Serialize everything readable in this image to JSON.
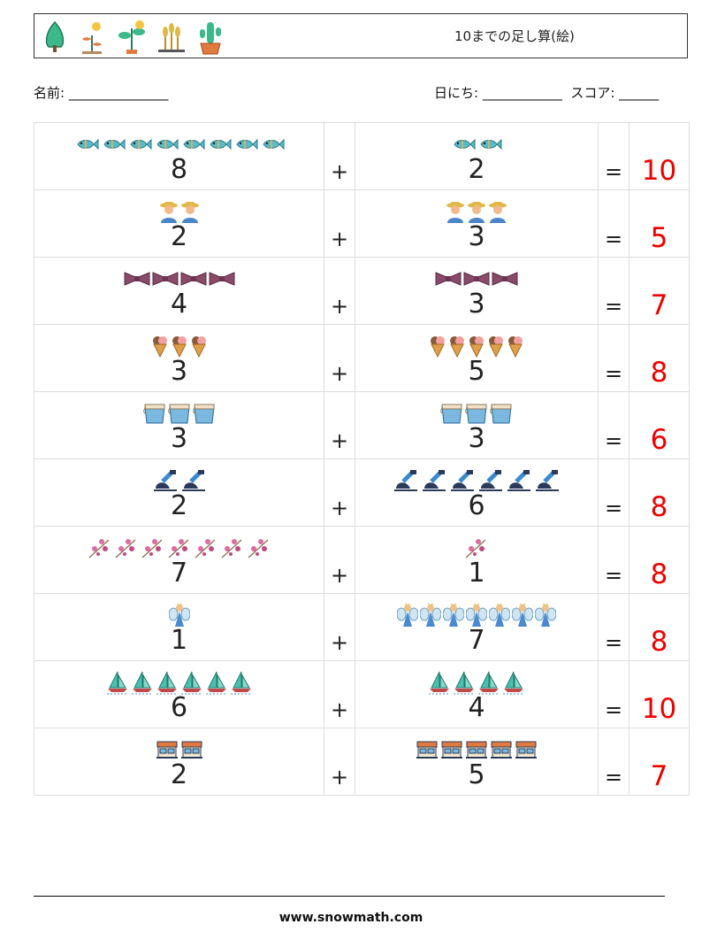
{
  "header": {
    "title": "10までの足し算(絵)",
    "icons": [
      "tree-icon",
      "sprout-icon",
      "plant-icon",
      "wheat-icon",
      "cactus-icon"
    ]
  },
  "meta": {
    "name_label": "名前: _______________",
    "date_score_label": "日にち: ____________  スコア: ______"
  },
  "problems": [
    {
      "a": "8",
      "a_icon": "fish-icon",
      "op": "+",
      "b": "2",
      "b_icon": "fish-icon",
      "eq": "=",
      "answer": "10"
    },
    {
      "a": "2",
      "a_icon": "farmer-icon",
      "op": "+",
      "b": "3",
      "b_icon": "farmer-icon",
      "eq": "=",
      "answer": "5"
    },
    {
      "a": "4",
      "a_icon": "bow-tie-icon",
      "op": "+",
      "b": "3",
      "b_icon": "bow-tie-icon",
      "eq": "=",
      "answer": "7"
    },
    {
      "a": "3",
      "a_icon": "ice-cream-icon",
      "op": "+",
      "b": "5",
      "b_icon": "ice-cream-icon",
      "eq": "=",
      "answer": "8"
    },
    {
      "a": "3",
      "a_icon": "water-bucket-icon",
      "op": "+",
      "b": "3",
      "b_icon": "water-bucket-icon",
      "eq": "=",
      "answer": "6"
    },
    {
      "a": "2",
      "a_icon": "microscope-icon",
      "op": "+",
      "b": "6",
      "b_icon": "microscope-icon",
      "eq": "=",
      "answer": "8"
    },
    {
      "a": "7",
      "a_icon": "flower-branch-icon",
      "op": "+",
      "b": "1",
      "b_icon": "flower-branch-icon",
      "eq": "=",
      "answer": "8"
    },
    {
      "a": "1",
      "a_icon": "fairy-icon",
      "op": "+",
      "b": "7",
      "b_icon": "fairy-icon",
      "eq": "=",
      "answer": "8"
    },
    {
      "a": "6",
      "a_icon": "sailboat-icon",
      "op": "+",
      "b": "4",
      "b_icon": "sailboat-icon",
      "eq": "=",
      "answer": "10"
    },
    {
      "a": "2",
      "a_icon": "shop-icon",
      "op": "+",
      "b": "5",
      "b_icon": "shop-icon",
      "eq": "=",
      "answer": "7"
    }
  ],
  "footer": {
    "url": "www.snowmath.com"
  }
}
